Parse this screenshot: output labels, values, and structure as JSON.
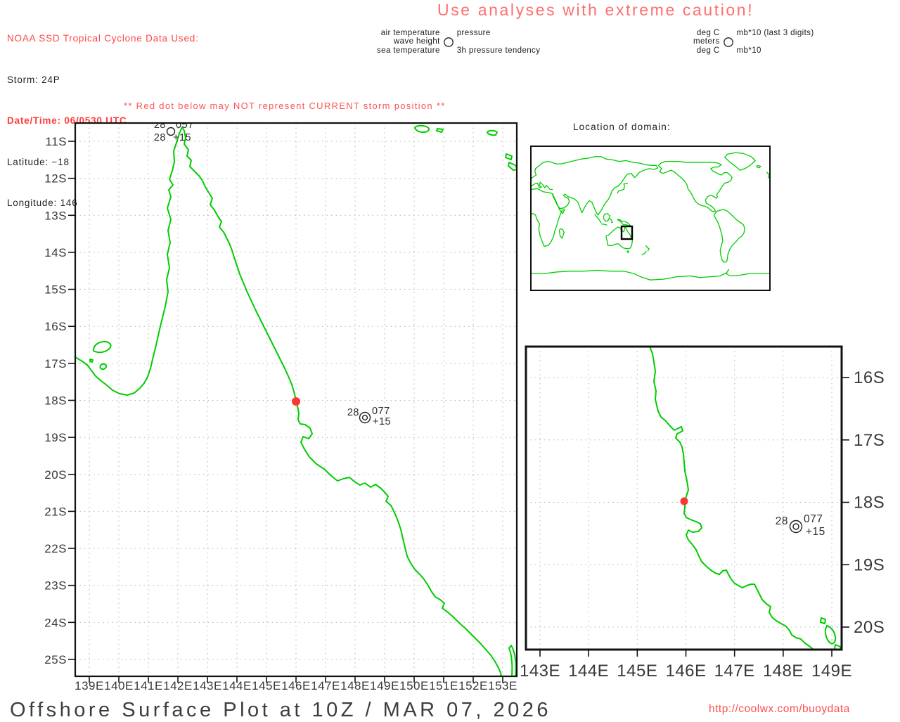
{
  "cyclone_info": {
    "title": "NOAA SSD Tropical Cyclone Data Used:",
    "storm": "Storm: 24P",
    "datetime": "Date/Time: 06/0530 UTC",
    "latitude": "Latitude: −18",
    "longitude": "Longitude: 146"
  },
  "caution": "Use analyses with extreme caution!",
  "warning": "** Red dot below may NOT represent CURRENT storm position **",
  "station_model_legend": {
    "labels": {
      "left": [
        "air temperature",
        "wave height",
        "sea temperature"
      ],
      "right": [
        "pressure",
        "",
        "3h pressure tendency"
      ]
    },
    "units": {
      "left": [
        "deg C",
        "meters",
        "deg C"
      ],
      "right": [
        "mb*10 (last 3 digits)",
        "",
        "mb*10"
      ]
    }
  },
  "inset": {
    "title": "Location of domain:"
  },
  "main_map": {
    "x_ticks": [
      "139E",
      "140E",
      "141E",
      "142E",
      "143E",
      "144E",
      "145E",
      "146E",
      "147E",
      "148E",
      "149E",
      "150E",
      "151E",
      "152E",
      "153E"
    ],
    "y_ticks": [
      "11S",
      "12S",
      "13S",
      "14S",
      "15S",
      "16S",
      "17S",
      "18S",
      "19S",
      "20S",
      "21S",
      "22S",
      "23S",
      "24S",
      "25S"
    ],
    "stations": [
      {
        "air": "28",
        "sea": "28",
        "pressure": "057",
        "tendency": "+15"
      },
      {
        "air": "28",
        "pressure": "077",
        "tendency": "+15"
      }
    ],
    "storm_position": {
      "lon": "146E",
      "lat": "18S"
    }
  },
  "zoom_map": {
    "x_ticks": [
      "143E",
      "144E",
      "145E",
      "146E",
      "147E",
      "148E",
      "149E"
    ],
    "y_ticks": [
      "16S",
      "17S",
      "18S",
      "19S",
      "20S"
    ],
    "station": {
      "air": "28",
      "pressure": "077",
      "tendency": "+15"
    },
    "storm_position": {
      "lon": "146E",
      "lat": "18S"
    }
  },
  "footer": {
    "title": "Offshore Surface Plot at 10Z / MAR 07, 2026",
    "url": "http://coolwx.com/buoydata"
  },
  "colors": {
    "coastline": "#00cd00",
    "storm_dot": "#fb3434",
    "header_red": "#ff4646",
    "datetime_red": "#ff3b3b",
    "caution_red": "#ff6e6e",
    "warning_red": "#ff5252",
    "url_red": "#ff4d4d",
    "grid": "#b4b4b4",
    "axis_text": "#383838"
  }
}
